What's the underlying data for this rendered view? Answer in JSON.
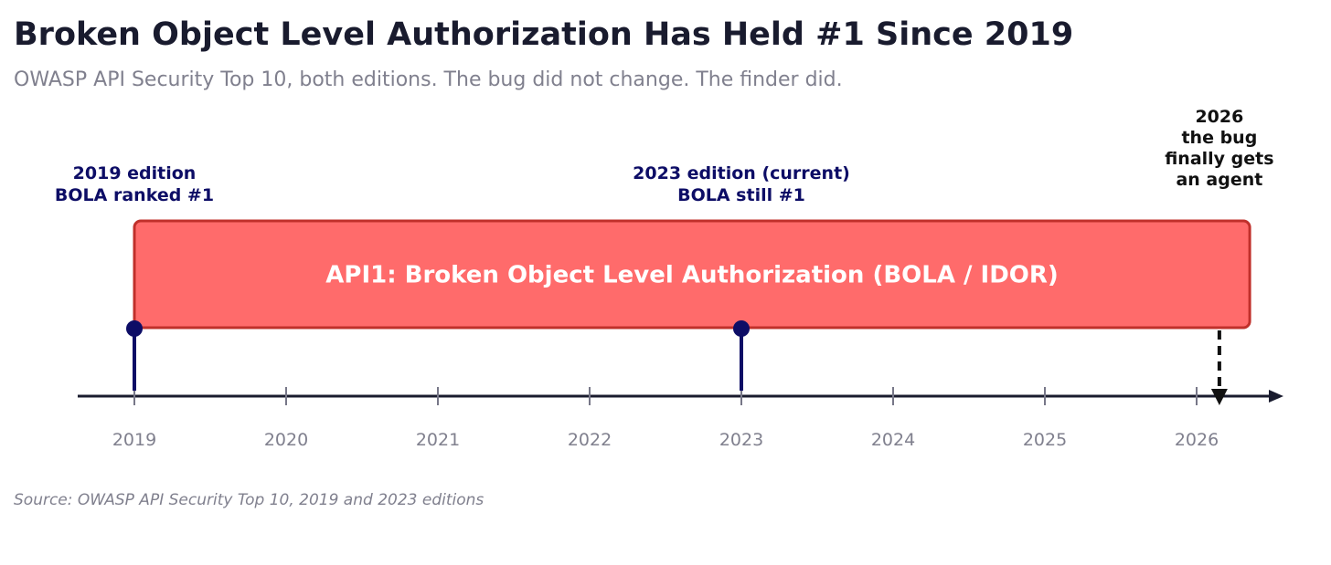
{
  "chart_data": {
    "type": "timeline",
    "title": "Broken Object Level Authorization Has Held #1 Since 2019",
    "subtitle": "OWASP API Security Top 10, both editions. The bug did not change. The finder did.",
    "source": "Source: OWASP API Security Top 10, 2019 and 2023 editions",
    "x_ticks": [
      2019,
      2020,
      2021,
      2022,
      2023,
      2024,
      2025,
      2026
    ],
    "xlim": [
      2018.6,
      2026.6
    ],
    "span": {
      "start": 2019,
      "end": 2026.35,
      "label": "API1:  Broken Object Level Authorization (BOLA / IDOR)",
      "fill_color": "#ff6b6b",
      "edge_color": "#c0302b"
    },
    "milestones": [
      {
        "x": 2019,
        "lines": [
          "2019 edition",
          "BOLA ranked #1"
        ],
        "color": "#0d0d66"
      },
      {
        "x": 2023,
        "lines": [
          "2023 edition (current)",
          "BOLA still #1"
        ],
        "color": "#0d0d66"
      }
    ],
    "future_marker": {
      "x": 2026.15,
      "lines": [
        "2026",
        "the bug",
        "finally gets",
        "an agent"
      ],
      "style": "dashed-arrow",
      "color": "#111111"
    },
    "axis_color": "#191b2e"
  }
}
